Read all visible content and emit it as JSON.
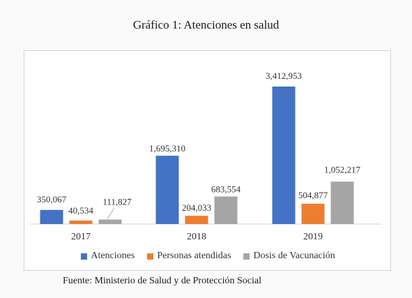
{
  "title": "Gráfico 1: Atenciones en salud",
  "source": "Fuente: Ministerio de Salud y de Protección Social",
  "colors": {
    "Atenciones": "#4472c4",
    "Personas atendidas": "#ed7d31",
    "Dosis de Vacunación": "#a5a5a5"
  },
  "chart_data": {
    "type": "bar",
    "title": "Gráfico 1: Atenciones en salud",
    "categories": [
      "2017",
      "2018",
      "2019"
    ],
    "series": [
      {
        "name": "Atenciones",
        "values": [
          350067,
          1695310,
          3412953
        ],
        "labels": [
          "350,067",
          "1,695,310",
          "3,412,953"
        ]
      },
      {
        "name": "Personas atendidas",
        "values": [
          40534,
          204033,
          504877
        ],
        "labels": [
          "40,534",
          "204,033",
          "504,877"
        ]
      },
      {
        "name": "Dosis de Vacunación",
        "values": [
          111827,
          683554,
          1052217
        ],
        "labels": [
          "111,827",
          "683,554",
          "1,052,217"
        ]
      }
    ],
    "legend_position": "bottom",
    "grid": false,
    "ylim": [
      0,
      3412953
    ]
  }
}
